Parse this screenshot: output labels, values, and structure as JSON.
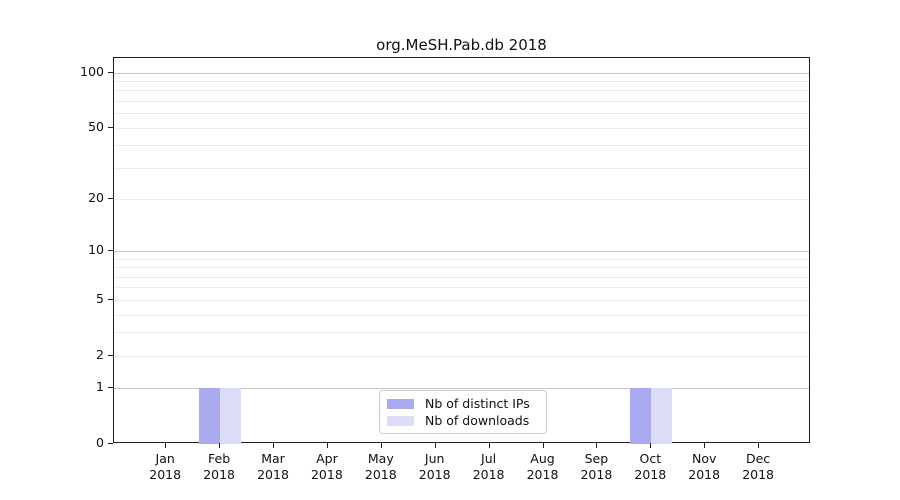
{
  "title": "org.MeSH.Pab.db 2018",
  "colors": {
    "background": "#ffffff",
    "axis": "#1f1f1f",
    "grid_major": "#c6c6c6",
    "grid_minor": "#ebebeb",
    "legend_border": "#cccccc"
  },
  "chart_data": {
    "type": "bar",
    "title": "org.MeSH.Pab.db 2018",
    "xlabel": "",
    "ylabel": "",
    "year": "2018",
    "categories": [
      "Jan",
      "Feb",
      "Mar",
      "Apr",
      "May",
      "Jun",
      "Jul",
      "Aug",
      "Sep",
      "Oct",
      "Nov",
      "Dec"
    ],
    "series": [
      {
        "name": "Nb of distinct IPs",
        "color": "#aaaaf2",
        "values": [
          0,
          1,
          0,
          0,
          0,
          0,
          0,
          0,
          0,
          1,
          0,
          0
        ]
      },
      {
        "name": "Nb of downloads",
        "color": "#dcdcf7",
        "values": [
          0,
          1,
          0,
          0,
          0,
          0,
          0,
          0,
          0,
          1,
          0,
          0
        ]
      }
    ],
    "yscale": "log1p",
    "ylim": [
      0,
      120
    ],
    "y_ticks": [
      0,
      1,
      2,
      5,
      10,
      20,
      50,
      100
    ],
    "y_major_gridlines": [
      1,
      10,
      100
    ],
    "y_minor_gridlines": [
      2,
      3,
      4,
      5,
      6,
      7,
      8,
      9,
      20,
      30,
      40,
      50,
      60,
      70,
      80,
      90
    ],
    "grid": true,
    "legend_position": "bottom-center"
  }
}
